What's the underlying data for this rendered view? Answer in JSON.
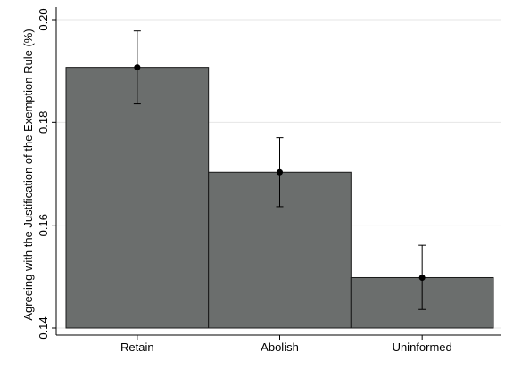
{
  "chart_data": {
    "type": "bar",
    "title": "",
    "xlabel": "",
    "ylabel": "Agreeing with the Justification of the Exemption Rule (%)",
    "categories": [
      "Retain",
      "Abolish",
      "Uninformed"
    ],
    "values": [
      0.1907,
      0.1703,
      0.1498
    ],
    "error_bars": {
      "lower": [
        0.1836,
        0.1636,
        0.1436
      ],
      "upper": [
        0.1978,
        0.177,
        0.1561
      ]
    },
    "ylim": [
      0.14,
      0.2
    ],
    "yticks": [
      "0.14",
      "0.16",
      "0.18",
      "0.20"
    ],
    "ytick_values": [
      0.14,
      0.16,
      0.18,
      0.2
    ],
    "grid": true,
    "colors": {
      "bar_fill": "#6b6e6d",
      "bar_edge": "#1a1a1a",
      "grid": "#e6e6e6",
      "marker": "#000000"
    }
  }
}
